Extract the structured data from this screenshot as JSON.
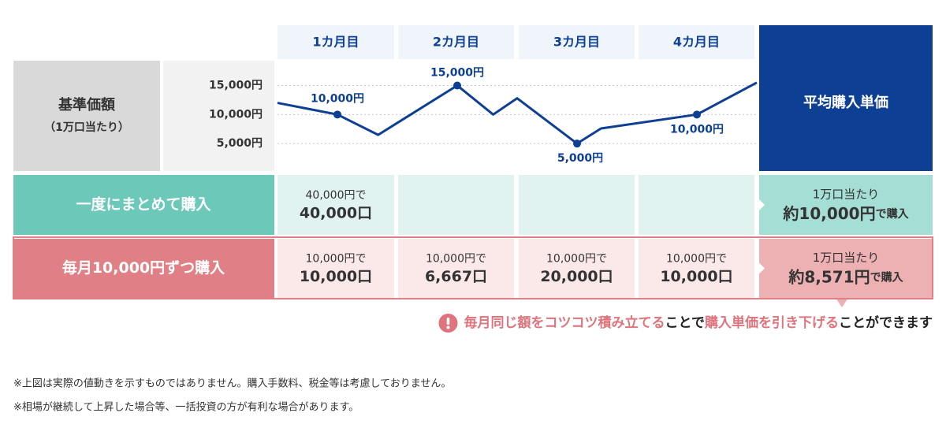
{
  "header": {
    "months": [
      "1カ月目",
      "2カ月目",
      "3カ月目",
      "4カ月目"
    ],
    "average_title": "平均購入単価"
  },
  "chart_data": {
    "type": "line",
    "y_label": "基準価額",
    "y_sublabel": "（1万口当たり）",
    "x": [
      0.5,
      1,
      1.34,
      2,
      2.3,
      2.5,
      3,
      3.2,
      4,
      4.5
    ],
    "xlim": [
      0.5,
      4.5
    ],
    "ylim": [
      0,
      19000
    ],
    "yticks": [
      {
        "value": 15000,
        "label": "15,000円"
      },
      {
        "value": 10000,
        "label": "10,000円"
      },
      {
        "value": 5000,
        "label": "5,000円"
      }
    ],
    "grid": true,
    "series": [
      {
        "color": "#0d3f94",
        "values": [
          12000,
          10000,
          6500,
          15000,
          10000,
          12800,
          5000,
          7600,
          10000,
          15500
        ],
        "value_labels": [
          null,
          "10,000円",
          null,
          "15,000円",
          null,
          null,
          "5,000円",
          null,
          "10,000円",
          null
        ]
      }
    ]
  },
  "rows": [
    {
      "label": "一度にまとめて購入",
      "color": "#6cc8b9",
      "cell_color": "#e0f3f0",
      "average_color": "#a5ded5",
      "cells": [
        {
          "price": "40,000円で",
          "units": "40,000口"
        },
        null,
        null,
        null
      ],
      "average": {
        "line1": "1万口当たり",
        "amount": "約10,000円",
        "suffix": "で購入"
      }
    },
    {
      "label": "毎月10,000円ずつ購入",
      "color": "#e07f85",
      "cell_color": "#fbe9ea",
      "average_color": "#edb1b3",
      "cells": [
        {
          "price": "10,000円で",
          "units": "10,000口"
        },
        {
          "price": "10,000円で",
          "units": "6,667口"
        },
        {
          "price": "10,000円で",
          "units": "20,000口"
        },
        {
          "price": "10,000円で",
          "units": "10,000口"
        }
      ],
      "average": {
        "line1": "1万口当たり",
        "amount": "約8,571円",
        "suffix": "で購入"
      }
    }
  ],
  "message": [
    {
      "text": "毎月同じ額をコツコツ積み立てる",
      "emphasis": true
    },
    {
      "text": "ことで",
      "emphasis": false
    },
    {
      "text": "購入単価を引き下げる",
      "emphasis": true
    },
    {
      "text": "ことができます",
      "emphasis": false
    }
  ],
  "notes": [
    "※上図は実際の値動きを示すものではありません。購入手数料、税金等は考慮しておりません。",
    "※相場が継続して上昇した場合等、一括投資の方が有利な場合があります。"
  ]
}
